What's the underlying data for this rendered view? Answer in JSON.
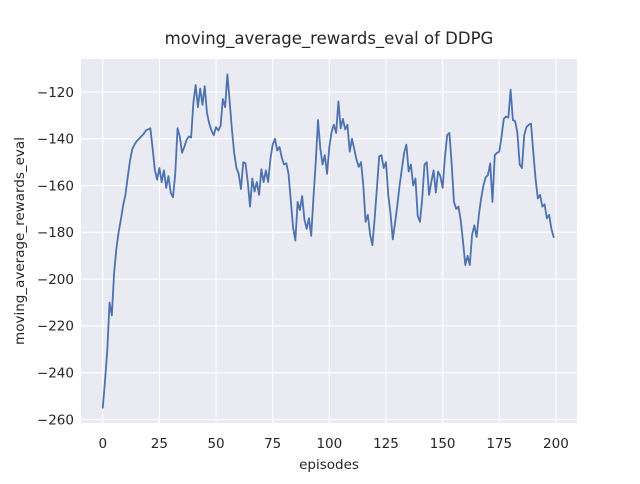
{
  "chart_data": {
    "type": "line",
    "title": "moving_average_rewards_eval of DDPG",
    "xlabel": "episodes",
    "ylabel": "moving_average_rewards_eval",
    "x_start": 0,
    "x_step": 1,
    "values": [
      -255,
      -243.5,
      -230.5,
      -210,
      -215.5,
      -197.5,
      -187,
      -180,
      -174.5,
      -168.5,
      -164,
      -156.5,
      -149.5,
      -144.5,
      -142.5,
      -141,
      -140,
      -139,
      -138,
      -136.5,
      -136,
      -135.5,
      -144,
      -153.5,
      -157.5,
      -152.5,
      -158.5,
      -153.5,
      -161,
      -156,
      -163,
      -165,
      -155,
      -135.5,
      -139,
      -146,
      -143.5,
      -140.5,
      -139,
      -139.5,
      -124.5,
      -117,
      -126.5,
      -118.5,
      -125.5,
      -117.5,
      -129,
      -133.5,
      -136.5,
      -138.5,
      -135,
      -136.5,
      -134.5,
      -123,
      -126.5,
      -112.5,
      -124,
      -136,
      -146,
      -152.5,
      -155,
      -161.5,
      -150,
      -150.5,
      -158.5,
      -169,
      -157,
      -162.5,
      -158.5,
      -164,
      -153,
      -158.5,
      -153.5,
      -158.5,
      -148.5,
      -142.5,
      -140,
      -145,
      -143.5,
      -148,
      -151,
      -150.5,
      -155,
      -166.5,
      -178,
      -183.5,
      -167,
      -170.5,
      -164.5,
      -174.5,
      -178.5,
      -174,
      -181.5,
      -165,
      -150,
      -132,
      -144,
      -151,
      -147,
      -155,
      -143.5,
      -137,
      -134,
      -137.5,
      -124,
      -135.5,
      -131.5,
      -136,
      -134,
      -145.5,
      -140,
      -144.5,
      -149,
      -152,
      -150,
      -160,
      -175.5,
      -172.5,
      -181,
      -185.5,
      -174,
      -161,
      -147.5,
      -147,
      -152.5,
      -150,
      -164,
      -172,
      -183,
      -176,
      -168.5,
      -160,
      -153,
      -146,
      -142.5,
      -154,
      -151,
      -160,
      -157,
      -173,
      -175.5,
      -165.5,
      -151,
      -150,
      -164,
      -158.5,
      -153.5,
      -163,
      -154,
      -156,
      -161,
      -148,
      -138.5,
      -137.5,
      -151,
      -167,
      -170,
      -169,
      -175,
      -184,
      -194,
      -190,
      -194,
      -181,
      -177,
      -182,
      -172.5,
      -165.5,
      -160,
      -156.5,
      -155.5,
      -150.5,
      -167,
      -147,
      -146,
      -145.5,
      -139,
      -131.5,
      -130.5,
      -131,
      -119,
      -132,
      -132.5,
      -137.5,
      -151,
      -152.5,
      -138.5,
      -135,
      -134,
      -133.5,
      -145.5,
      -157,
      -165.5,
      -164,
      -169,
      -168,
      -174,
      -172.5,
      -178.5,
      -182
    ],
    "xlim": [
      -9.6,
      209.3
    ],
    "ylim": [
      -261.5,
      -105.9
    ],
    "xticks": {
      "values": [
        0,
        25,
        50,
        75,
        100,
        125,
        150,
        175,
        200
      ],
      "labels": [
        "0",
        "25",
        "50",
        "75",
        "100",
        "125",
        "150",
        "175",
        "200"
      ]
    },
    "yticks": {
      "values": [
        -260,
        -240,
        -220,
        -200,
        -180,
        -160,
        -140,
        -120
      ],
      "labels": [
        "−260",
        "−240",
        "−220",
        "−200",
        "−180",
        "−160",
        "−140",
        "−120"
      ]
    },
    "grid": true,
    "legend": null,
    "colors": {
      "line": "#4C72B0",
      "plot_bg": "#EAEAF2",
      "grid": "#FFFFFF",
      "text": "#262626",
      "figure_bg": "#FFFFFF"
    }
  }
}
